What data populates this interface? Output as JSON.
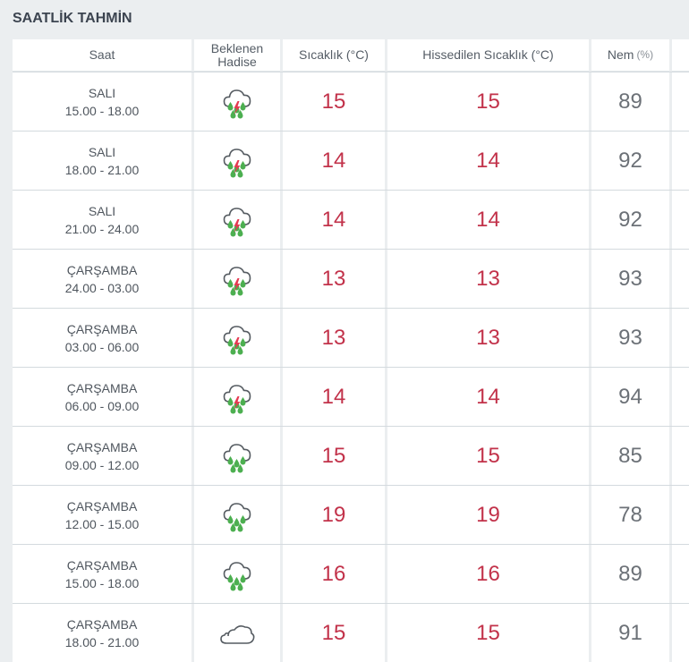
{
  "title": "SAATLİK TAHMİN",
  "headers": {
    "time": "Saat",
    "event_line1": "Beklenen",
    "event_line2": "Hadise",
    "temp": "Sıcaklık (°C)",
    "feels": "Hissedilen Sıcaklık (°C)",
    "humidity": "Nem",
    "humidity_unit": "(%)"
  },
  "rows": [
    {
      "day": "SALI",
      "range": "15.00 - 18.00",
      "icon": "thunderstorm-rain-icon",
      "temp": "15",
      "feels": "15",
      "humidity": "89"
    },
    {
      "day": "SALI",
      "range": "18.00 - 21.00",
      "icon": "thunderstorm-rain-icon",
      "temp": "14",
      "feels": "14",
      "humidity": "92"
    },
    {
      "day": "SALI",
      "range": "21.00 - 24.00",
      "icon": "thunderstorm-rain-icon",
      "temp": "14",
      "feels": "14",
      "humidity": "92"
    },
    {
      "day": "ÇARŞAMBA",
      "range": "24.00 - 03.00",
      "icon": "thunderstorm-rain-icon",
      "temp": "13",
      "feels": "13",
      "humidity": "93"
    },
    {
      "day": "ÇARŞAMBA",
      "range": "03.00 - 06.00",
      "icon": "thunderstorm-rain-icon",
      "temp": "13",
      "feels": "13",
      "humidity": "93"
    },
    {
      "day": "ÇARŞAMBA",
      "range": "06.00 - 09.00",
      "icon": "thunderstorm-rain-icon",
      "temp": "14",
      "feels": "14",
      "humidity": "94"
    },
    {
      "day": "ÇARŞAMBA",
      "range": "09.00 - 12.00",
      "icon": "rain-cloud-icon",
      "temp": "15",
      "feels": "15",
      "humidity": "85"
    },
    {
      "day": "ÇARŞAMBA",
      "range": "12.00 - 15.00",
      "icon": "rain-cloud-icon",
      "temp": "19",
      "feels": "19",
      "humidity": "78"
    },
    {
      "day": "ÇARŞAMBA",
      "range": "15.00 - 18.00",
      "icon": "rain-cloud-icon",
      "temp": "16",
      "feels": "16",
      "humidity": "89"
    },
    {
      "day": "ÇARŞAMBA",
      "range": "18.00 - 21.00",
      "icon": "cloudy-icon",
      "temp": "15",
      "feels": "15",
      "humidity": "91"
    }
  ],
  "colors": {
    "temperature": "#c2324a",
    "rain_drop": "#4caf50",
    "lightning": "#e53950",
    "cloud_outline": "#555b61"
  }
}
